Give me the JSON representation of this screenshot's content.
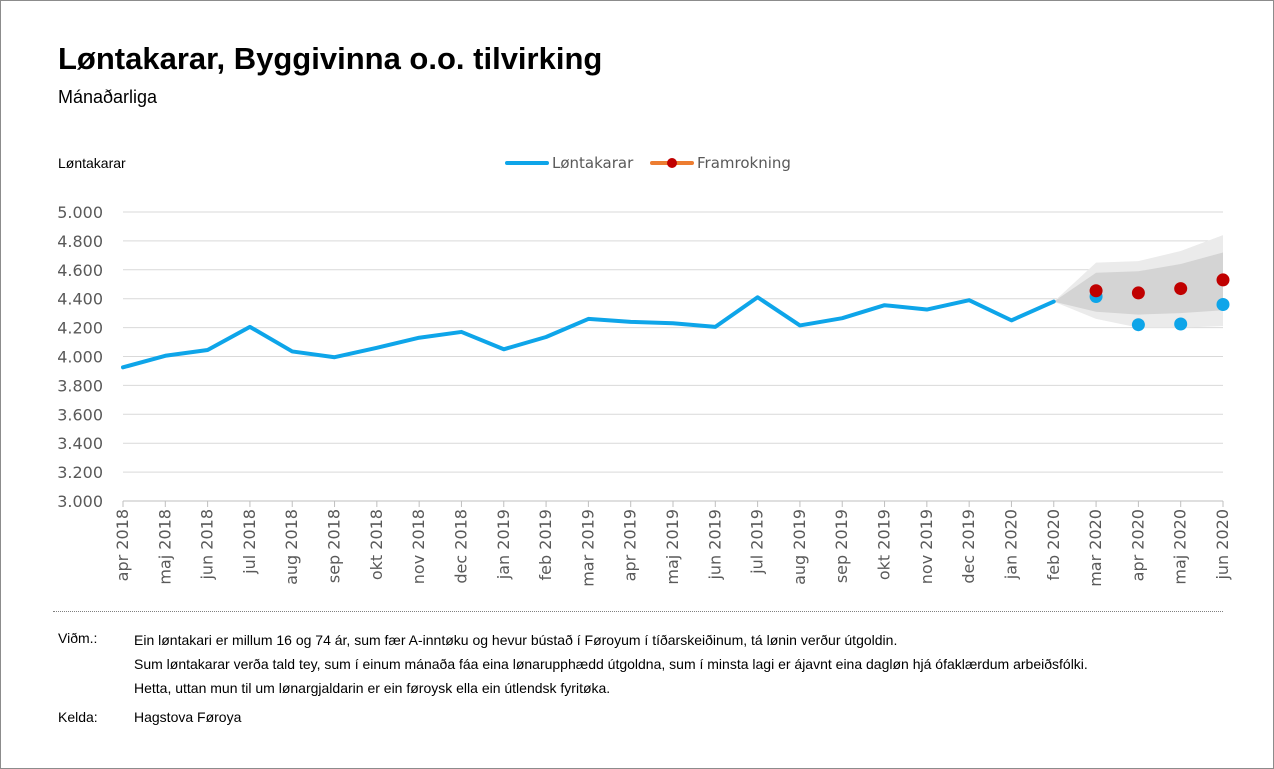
{
  "chart_data": {
    "type": "line",
    "title": "Løntakarar, Byggivinna o.o. tilvirking",
    "subtitle": "Mánaðarliga",
    "ylabel": "Løntakarar",
    "ylim": [
      3000,
      5000
    ],
    "yticks": [
      3000,
      3200,
      3400,
      3600,
      3800,
      4000,
      4200,
      4400,
      4600,
      4800,
      5000
    ],
    "ytick_labels": [
      "3.000",
      "3.200",
      "3.400",
      "3.600",
      "3.800",
      "4.000",
      "4.200",
      "4.400",
      "4.600",
      "4.800",
      "5.000"
    ],
    "categories": [
      "apr 2018",
      "maj 2018",
      "jun 2018",
      "jul 2018",
      "aug 2018",
      "sep 2018",
      "okt 2018",
      "nov 2018",
      "dec 2018",
      "jan 2019",
      "feb 2019",
      "mar 2019",
      "apr 2019",
      "maj 2019",
      "jun 2019",
      "jul 2019",
      "aug 2019",
      "sep 2019",
      "okt 2019",
      "nov 2019",
      "dec 2019",
      "jan 2020",
      "feb 2020",
      "mar 2020",
      "apr 2020",
      "maj 2020",
      "jun 2020"
    ],
    "grid": true,
    "legend_position": "top-center",
    "series": [
      {
        "name": "Løntakarar",
        "color": "#0ea5e9",
        "values": [
          3925,
          4005,
          4045,
          4205,
          4035,
          3995,
          4060,
          4130,
          4170,
          4050,
          4135,
          4260,
          4240,
          4230,
          4205,
          4410,
          4215,
          4265,
          4355,
          4325,
          4390,
          4250,
          4380,
          4415,
          4220,
          4225,
          4360
        ]
      },
      {
        "name": "Framrokning",
        "color": "#c00000",
        "values": [
          null,
          null,
          null,
          null,
          null,
          null,
          null,
          null,
          null,
          null,
          null,
          null,
          null,
          null,
          null,
          null,
          null,
          null,
          null,
          null,
          null,
          null,
          null,
          4455,
          4440,
          4470,
          4530
        ]
      }
    ],
    "forecast_band": {
      "start_index": 22,
      "outer_upper": [
        4380,
        4650,
        4660,
        4730,
        4840
      ],
      "outer_lower": [
        4380,
        4260,
        4200,
        4200,
        4210
      ],
      "inner_upper": [
        4380,
        4580,
        4590,
        4640,
        4720
      ],
      "inner_lower": [
        4380,
        4310,
        4290,
        4300,
        4320
      ],
      "outer_color": "#ebebeb",
      "inner_color": "#d4d4d4"
    }
  },
  "notes": {
    "label": "Viðm.:",
    "lines": [
      "Ein løntakari er millum 16 og 74 ár, sum fær A-inntøku og hevur bústað í Føroyum í tíðarskeiðinum, tá lønin verður útgoldin.",
      "Sum løntakarar verða tald tey, sum í einum mánaða fáa eina lønarupphædd útgoldna, sum í minsta lagi er ájavnt eina dagløn hjá ófaklærdum arbeiðsfólki.",
      "Hetta, uttan mun til um lønargjaldarin er ein føroysk ella ein útlendsk fyritøka."
    ]
  },
  "source": {
    "label": "Kelda:",
    "text": "Hagstova Føroya"
  }
}
